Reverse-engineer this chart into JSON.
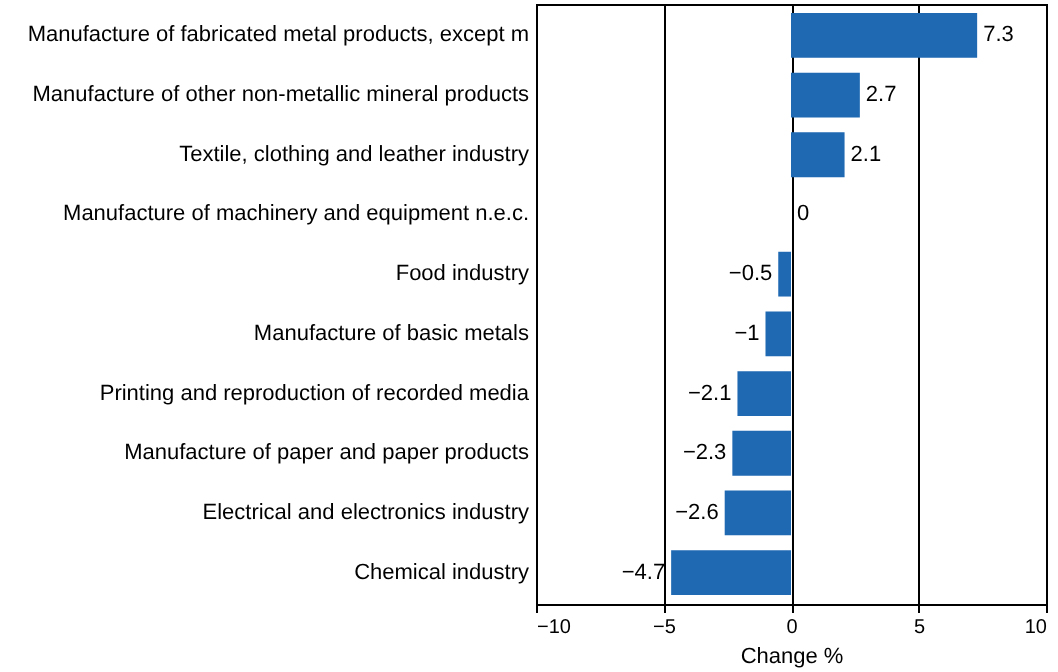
{
  "chart_data": {
    "type": "bar",
    "orientation": "horizontal",
    "xlabel": "Change %",
    "categories": [
      "Manufacture of fabricated metal products, except m",
      "Manufacture of other non-metallic mineral products",
      "Textile, clothing and leather industry",
      "Manufacture of machinery and equipment n.e.c.",
      "Food industry",
      "Manufacture of basic metals",
      "Printing and reproduction of recorded media",
      "Manufacture of paper and paper products",
      "Electrical and electronics industry",
      "Chemical industry"
    ],
    "values": [
      7.3,
      2.7,
      2.1,
      0,
      -0.5,
      -1,
      -2.1,
      -2.3,
      -2.6,
      -4.7
    ],
    "color": "#1f69b3",
    "xlim": [
      -10,
      10
    ],
    "xticks": [
      -10,
      -5,
      0,
      5,
      10
    ],
    "grid": "x",
    "data_labels": true
  }
}
